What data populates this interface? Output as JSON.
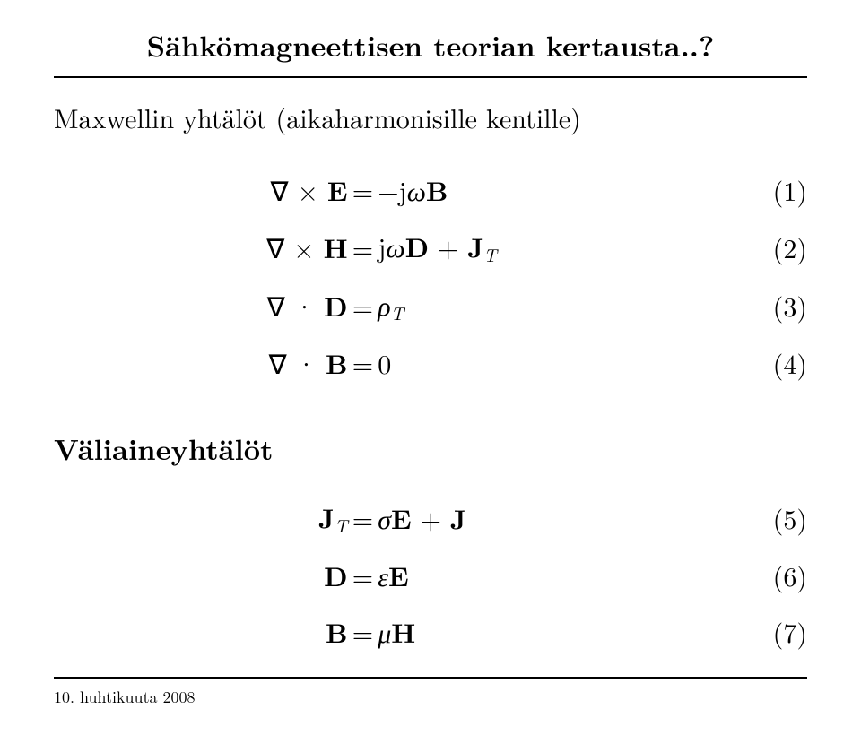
{
  "title": "Sähkömagneettisen teorian kertausta..?",
  "subtitle": "Maxwellin yhtälöt (aikaharmonisille kentille)",
  "heading2": "Väliaineyhtälöt",
  "footer_date": "10. huhtikuuta 2008",
  "maxwell": [
    {
      "lhs_html": "∇ × <span class='bold'>E</span>",
      "rhs_html": "−j<span class='it'>ω</span><span class='bold'>B</span>",
      "num": "(1)"
    },
    {
      "lhs_html": "∇ × <span class='bold'>H</span>",
      "rhs_html": "j<span class='it'>ω</span><span class='bold'>D</span> + <span class='bold'>J</span><span class='sub'>T</span>",
      "num": "(2)"
    },
    {
      "lhs_html": "∇ · <span class='bold'>D</span>",
      "rhs_html": "<span class='it'>ρ</span><span class='sub'>T</span>",
      "num": "(3)"
    },
    {
      "lhs_html": "∇ · <span class='bold'>B</span>",
      "rhs_html": "0",
      "num": "(4)"
    }
  ],
  "constitutive": [
    {
      "lhs_html": "<span class='bold'>J</span><span class='sub'>T</span>",
      "rhs_html": "<span class='it'>σ</span><span class='bold'>E</span> + <span class='bold'>J</span>",
      "num": "(5)"
    },
    {
      "lhs_html": "<span class='bold'>D</span>",
      "rhs_html": "<span class='it'>ε</span><span class='bold'>E</span>",
      "num": "(6)"
    },
    {
      "lhs_html": "<span class='bold'>B</span>",
      "rhs_html": "<span class='it'>μ</span><span class='bold'>H</span>",
      "num": "(7)"
    }
  ],
  "layout": {
    "col_widths": [
      "39%",
      "4%",
      "27%",
      "30%"
    ]
  }
}
